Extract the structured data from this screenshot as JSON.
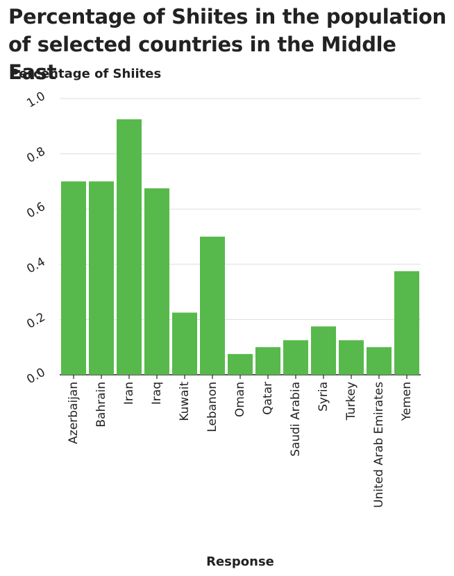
{
  "chart_data": {
    "type": "bar",
    "title": "Percentage of Shiites in the population of selected countries in the Middle East",
    "ylabel": "Percentage of Shiites",
    "xlabel": "Response",
    "categories": [
      "Azerbaijan",
      "Bahrain",
      "Iran",
      "Iraq",
      "Kuwait",
      "Lebanon",
      "Oman",
      "Qatar",
      "Saudi Arabia",
      "Syria",
      "Turkey",
      "United Arab Emirates",
      "Yemen"
    ],
    "values": [
      0.7,
      0.7,
      0.925,
      0.675,
      0.225,
      0.5,
      0.075,
      0.1,
      0.125,
      0.175,
      0.125,
      0.1,
      0.375
    ],
    "ylim": [
      0,
      1.0
    ],
    "yticks": [
      "0.0",
      "0.2",
      "0.4",
      "0.6",
      "0.8",
      "1.0"
    ],
    "grid": "horizontal",
    "bar_color": "#57b94b"
  }
}
